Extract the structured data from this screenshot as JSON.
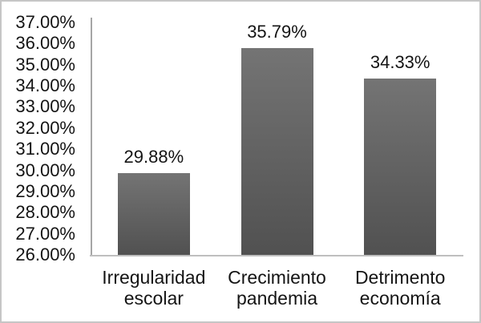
{
  "window": {
    "background": "#ffffff",
    "border_color": "#c6c6c6"
  },
  "chart_data": {
    "type": "bar",
    "title": "",
    "xlabel": "",
    "ylabel": "",
    "categories": [
      "Irregularidad escolar",
      "Crecimiento pandemia",
      "Detrimento economía"
    ],
    "values": [
      29.88,
      35.79,
      34.33
    ],
    "data_labels": [
      "29.88%",
      "35.79%",
      "34.33%"
    ],
    "y_tick_labels": [
      "37.00%",
      "36.00%",
      "35.00%",
      "34.00%",
      "33.00%",
      "32.00%",
      "31.00%",
      "30.00%",
      "29.00%",
      "28.00%",
      "27.00%",
      "26.00%"
    ],
    "y_tick_values": [
      37,
      36,
      35,
      34,
      33,
      32,
      31,
      30,
      29,
      28,
      27,
      26
    ],
    "ylim": [
      26,
      37
    ],
    "grid": false,
    "legend": false,
    "styles": {
      "bar_gradient_top": "#747474",
      "bar_gradient_bottom": "#515151",
      "y_axis_line_color": "#a6a6a6",
      "x_axis_line_color": "#bfbfbf",
      "label_color": "#141414"
    }
  }
}
